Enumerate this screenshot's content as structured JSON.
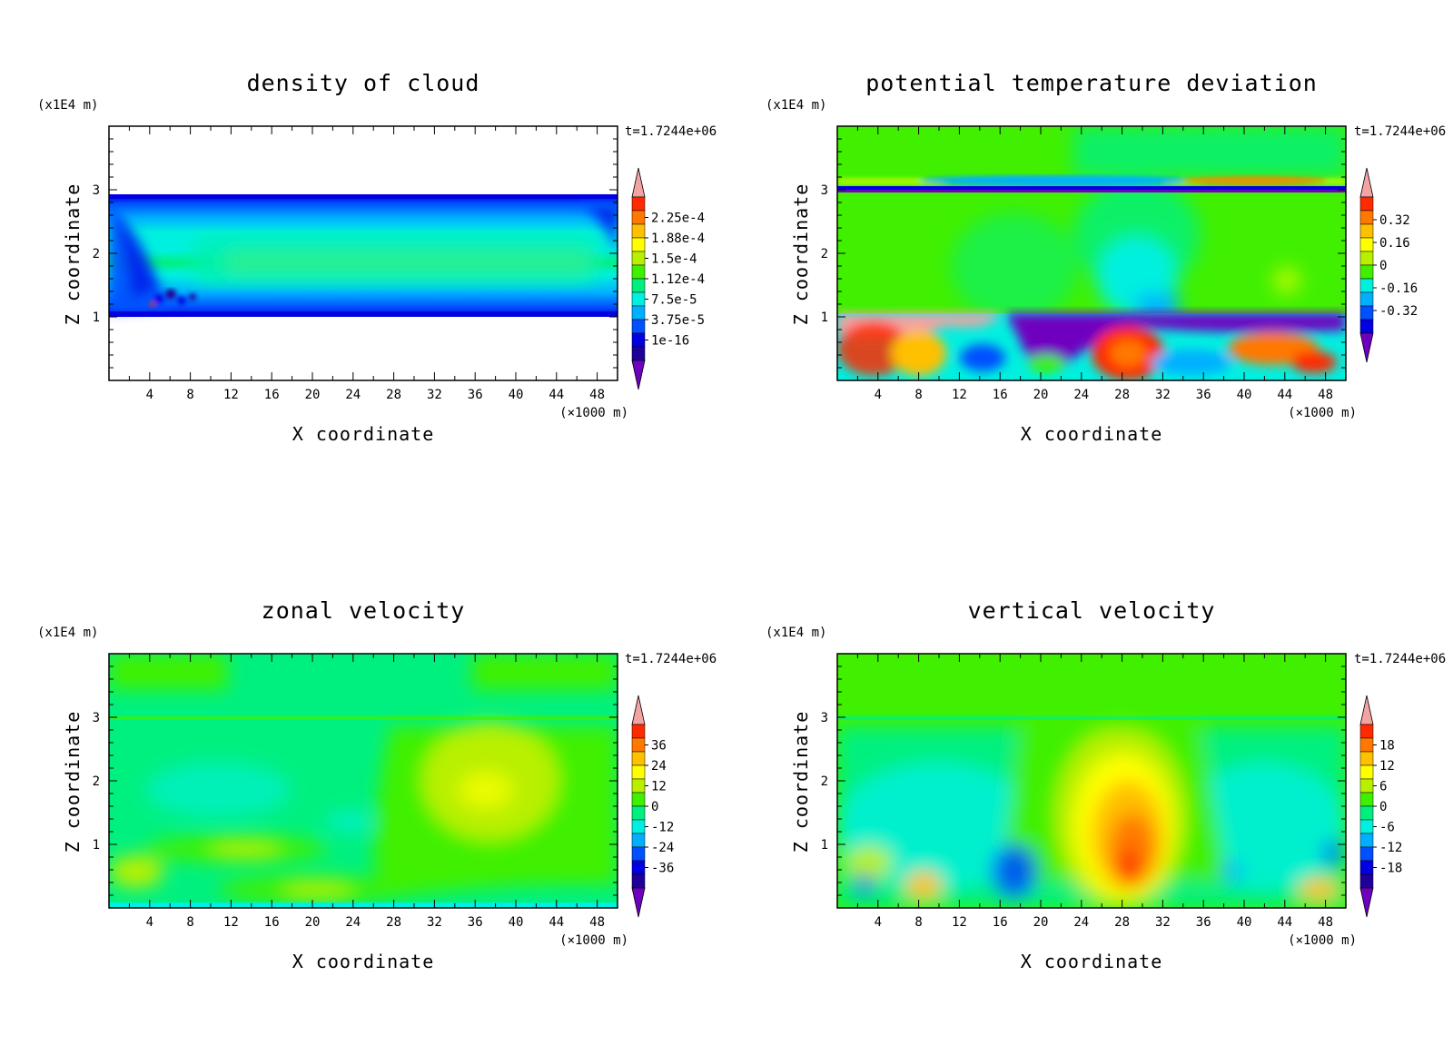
{
  "chart_data": [
    {
      "type": "heatmap",
      "title": "density of cloud",
      "xlabel": "X coordinate",
      "ylabel": "Z coordinate",
      "x_unit": "(×1000 m)",
      "y_unit": "(x1E4 m)",
      "time_label": "t=1.7244e+06",
      "x_ticks": [
        "4",
        "8",
        "12",
        "16",
        "20",
        "24",
        "28",
        "32",
        "36",
        "40",
        "44",
        "48"
      ],
      "y_ticks": [
        "1",
        "2",
        "3"
      ],
      "xlim": [
        0,
        50
      ],
      "ylim": [
        0,
        4
      ],
      "colorbar_labels": [
        "2.25e-4",
        "1.88e-4",
        "1.5e-4",
        "1.12e-4",
        "7.5e-5",
        "3.75e-5",
        "1e-16"
      ],
      "colors": [
        "#f4a3a3",
        "#ff2a00",
        "#ff7800",
        "#ffc000",
        "#ffff00",
        "#b8f000",
        "#40f000",
        "#00f080",
        "#00f0e0",
        "#00b0ff",
        "#0050ff",
        "#0000e0",
        "#20009a",
        "#7000c0"
      ],
      "cbar_arrows": [
        "top",
        "bottom"
      ],
      "description_values": {
        "cloud_base_km": 10,
        "cloud_top_km": 29
      }
    },
    {
      "type": "heatmap",
      "title": "potential temperature deviation",
      "xlabel": "X coordinate",
      "ylabel": "Z coordinate",
      "x_unit": "(×1000 m)",
      "y_unit": "(x1E4 m)",
      "time_label": "t=1.7244e+06",
      "x_ticks": [
        "4",
        "8",
        "12",
        "16",
        "20",
        "24",
        "28",
        "32",
        "36",
        "40",
        "44",
        "48"
      ],
      "y_ticks": [
        "1",
        "2",
        "3"
      ],
      "xlim": [
        0,
        50
      ],
      "ylim": [
        0,
        4
      ],
      "colorbar_labels": [
        "0.32",
        "0.16",
        "0",
        "-0.16",
        "-0.32"
      ],
      "colors": [
        "#f4a3a3",
        "#ff2a00",
        "#ff7800",
        "#ffc000",
        "#ffff00",
        "#b8f000",
        "#40f000",
        "#00f0e0",
        "#00b0ff",
        "#0050ff",
        "#0000e0",
        "#7000c0"
      ],
      "cbar_arrows": [
        "top",
        "bottom"
      ]
    },
    {
      "type": "heatmap",
      "title": "zonal velocity",
      "xlabel": "X coordinate",
      "ylabel": "Z coordinate",
      "x_unit": "(×1000 m)",
      "y_unit": "(x1E4 m)",
      "time_label": "t=1.7244e+06",
      "x_ticks": [
        "4",
        "8",
        "12",
        "16",
        "20",
        "24",
        "28",
        "32",
        "36",
        "40",
        "44",
        "48"
      ],
      "y_ticks": [
        "1",
        "2",
        "3"
      ],
      "xlim": [
        0,
        50
      ],
      "ylim": [
        0,
        4
      ],
      "colorbar_labels": [
        "36",
        "24",
        "12",
        "0",
        "-12",
        "-24",
        "-36"
      ],
      "colors": [
        "#f4a3a3",
        "#ff2a00",
        "#ff7800",
        "#ffc000",
        "#ffff00",
        "#b8f000",
        "#40f000",
        "#00f080",
        "#00f0e0",
        "#00b0ff",
        "#0050ff",
        "#0000e0",
        "#20009a",
        "#7000c0"
      ],
      "cbar_arrows": [
        "top",
        "bottom"
      ]
    },
    {
      "type": "heatmap",
      "title": "vertical velocity",
      "xlabel": "X coordinate",
      "ylabel": "Z coordinate",
      "x_unit": "(×1000 m)",
      "y_unit": "(x1E4 m)",
      "time_label": "t=1.7244e+06",
      "x_ticks": [
        "4",
        "8",
        "12",
        "16",
        "20",
        "24",
        "28",
        "32",
        "36",
        "40",
        "44",
        "48"
      ],
      "y_ticks": [
        "1",
        "2",
        "3"
      ],
      "xlim": [
        0,
        50
      ],
      "ylim": [
        0,
        4
      ],
      "colorbar_labels": [
        "18",
        "12",
        "6",
        "0",
        "-6",
        "-12",
        "-18"
      ],
      "colors": [
        "#f4a3a3",
        "#ff2a00",
        "#ff7800",
        "#ffc000",
        "#ffff00",
        "#b8f000",
        "#40f000",
        "#00f080",
        "#00f0e0",
        "#00b0ff",
        "#0050ff",
        "#0000e0",
        "#20009a",
        "#7000c0"
      ],
      "cbar_arrows": [
        "top",
        "bottom"
      ]
    }
  ]
}
